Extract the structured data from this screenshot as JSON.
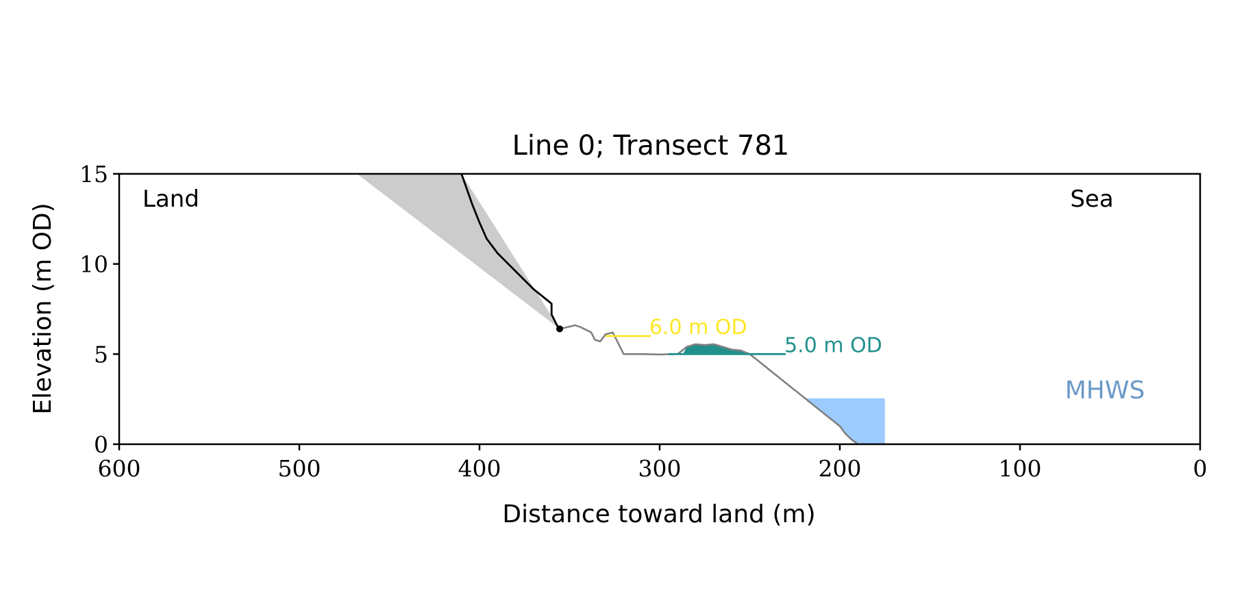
{
  "chart_data": {
    "type": "line",
    "title": "Line 0; Transect 781",
    "xlabel": "Distance toward land (m)",
    "ylabel": "Elevation (m OD)",
    "xlim": [
      600,
      0
    ],
    "ylim": [
      0,
      15
    ],
    "x_ticks": [
      600,
      500,
      400,
      300,
      200,
      100,
      0
    ],
    "y_ticks": [
      0,
      5,
      10,
      15
    ],
    "grid": false,
    "corner_labels": {
      "left": "Land",
      "right": "Sea"
    },
    "series": [
      {
        "role": "cliff-profile",
        "color": "#000000",
        "x": [
          410,
          404,
          400,
          396,
          390,
          380,
          370,
          360,
          360,
          357,
          355.5
        ],
        "y": [
          15,
          13.3,
          12.3,
          11.4,
          10.6,
          9.6,
          8.6,
          7.8,
          7.2,
          6.6,
          6.4
        ]
      },
      {
        "role": "beach-profile",
        "color": "#808080",
        "x": [
          355.5,
          351,
          347,
          344,
          338,
          336,
          333,
          330,
          326,
          320,
          310,
          300,
          295,
          290,
          285,
          280,
          275,
          270,
          265,
          260,
          255,
          250,
          245,
          240,
          230,
          220,
          210,
          200,
          197,
          194,
          190
        ],
        "y": [
          6.4,
          6.5,
          6.6,
          6.5,
          6.2,
          5.8,
          5.7,
          6.1,
          6.2,
          5.0,
          5.0,
          4.98,
          4.99,
          5.0,
          5.4,
          5.55,
          5.5,
          5.55,
          5.4,
          5.25,
          5.2,
          5.0,
          4.6,
          4.2,
          3.4,
          2.6,
          1.8,
          1.0,
          0.6,
          0.3,
          0.0
        ]
      }
    ],
    "cliff_toe": {
      "x": 355.5,
      "y": 6.4
    },
    "shaded_wedge": {
      "color": "#cccccc",
      "top_x_range": [
        468,
        410
      ],
      "apex": {
        "x": 355.5,
        "y": 6.4
      }
    },
    "dune_fill": {
      "color": "#21908c",
      "x_range": [
        287,
        252
      ],
      "base_y": 5.0
    },
    "reference_lines": [
      {
        "label": "6.0 m OD",
        "y": 6.0,
        "x_range": [
          330,
          305
        ],
        "color": "#fde725"
      },
      {
        "label": "5.0 m OD",
        "y": 5.0,
        "x_range": [
          295,
          230
        ],
        "color": "#21908c"
      }
    ],
    "mhws": {
      "label": "MHWS",
      "color": "#9dcbfe",
      "label_color": "#6a9ac8",
      "x_range": [
        214,
        175
      ],
      "y": 2.55
    }
  }
}
